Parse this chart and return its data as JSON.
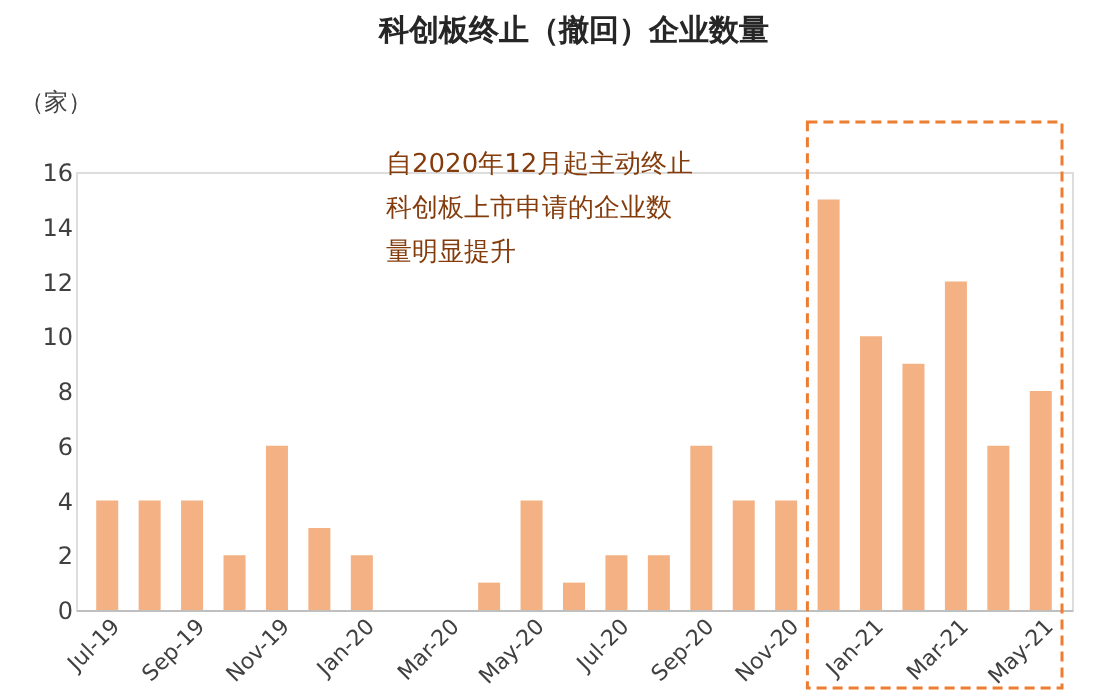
{
  "chart_data": {
    "type": "bar",
    "title": "科创板终止（撤回）企业数量",
    "ylabel": "（家）",
    "categories": [
      "Jul-19",
      null,
      "Sep-19",
      null,
      "Nov-19",
      null,
      "Jan-20",
      null,
      "Mar-20",
      null,
      "May-20",
      null,
      "Jul-20",
      null,
      "Sep-20",
      null,
      "Nov-20",
      null,
      "Jan-21",
      null,
      "Mar-21",
      null,
      "May-21"
    ],
    "values": [
      4,
      4,
      4,
      2,
      6,
      3,
      2,
      0,
      0,
      1,
      4,
      1,
      2,
      2,
      6,
      4,
      4,
      15,
      10,
      9,
      12,
      6,
      8
    ],
    "color": "#f4b183",
    "ylim": [
      0,
      16
    ],
    "yticks": [
      0,
      2,
      4,
      6,
      8,
      10,
      12,
      14,
      16
    ],
    "grid": false,
    "annotations": [
      "自2020年12月起主动终止科创板上市申请的企业数量明显提升"
    ]
  }
}
